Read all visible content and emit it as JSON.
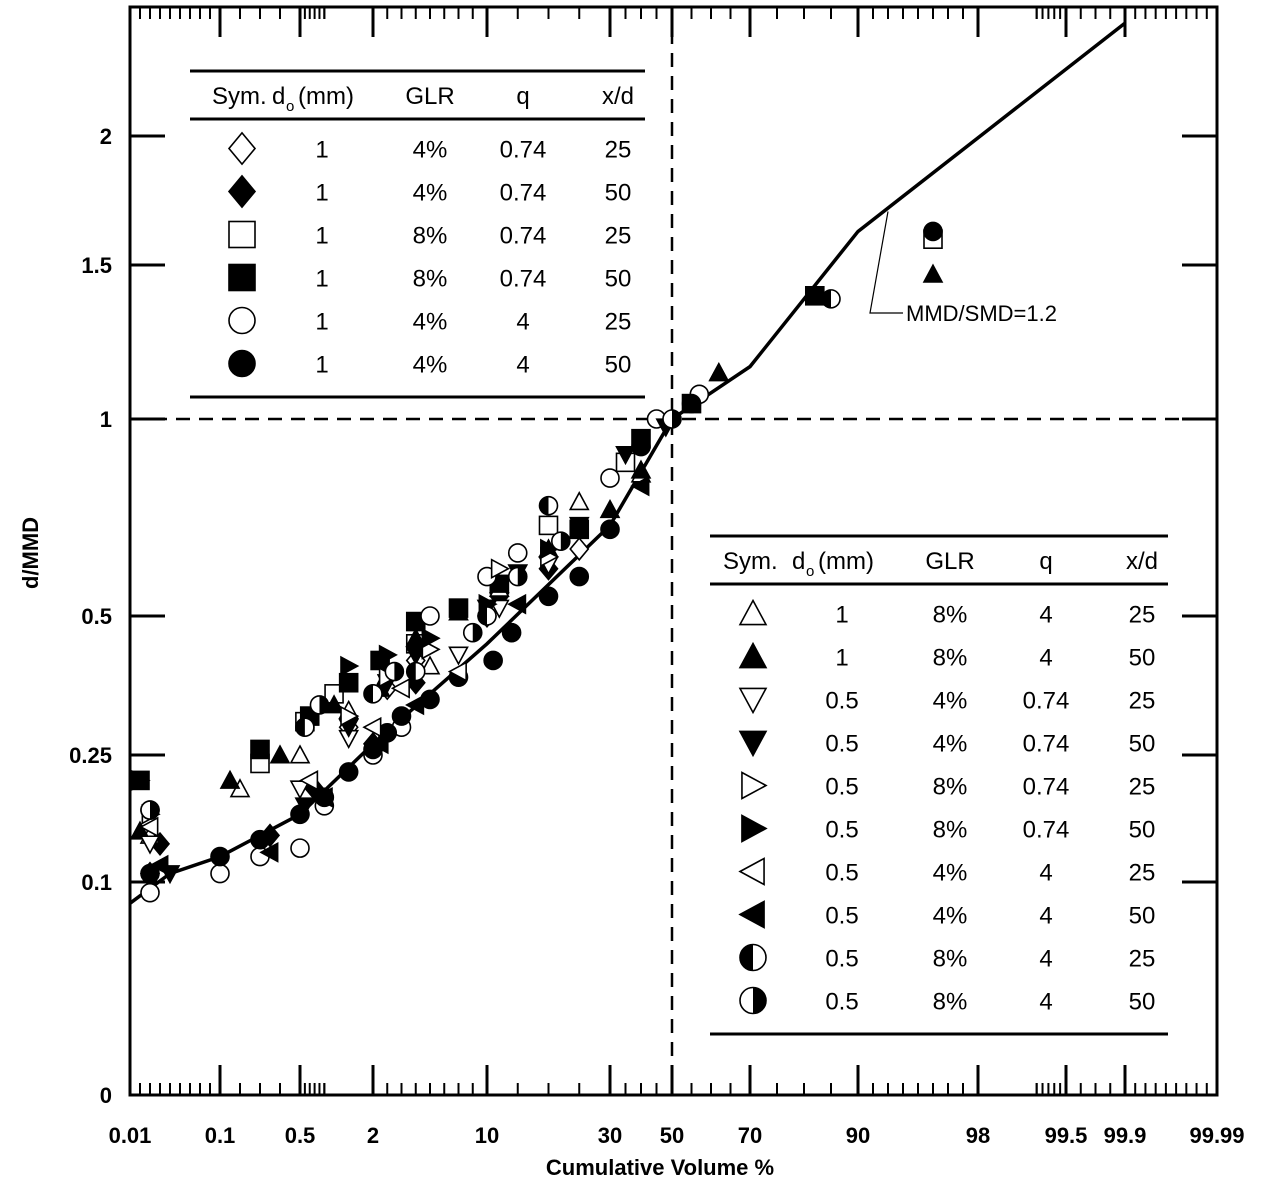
{
  "chart_data": {
    "type": "scatter",
    "xlabel": "Cumulative Volume %",
    "ylabel": "d/MMD",
    "x_scale": "probability",
    "y_scale": "nonlinear",
    "x_ticks": [
      {
        "value": 0.01,
        "label": "0.01"
      },
      {
        "value": 0.1,
        "label": "0.1"
      },
      {
        "value": 0.5,
        "label": "0.5"
      },
      {
        "value": 2,
        "label": "2"
      },
      {
        "value": 10,
        "label": "10"
      },
      {
        "value": 30,
        "label": "30"
      },
      {
        "value": 50,
        "label": "50"
      },
      {
        "value": 70,
        "label": "70"
      },
      {
        "value": 90,
        "label": "90"
      },
      {
        "value": 98,
        "label": "98"
      },
      {
        "value": 99.5,
        "label": "99.5"
      },
      {
        "value": 99.9,
        "label": "99.9"
      },
      {
        "value": 99.99,
        "label": "99.99"
      }
    ],
    "y_ticks": [
      {
        "value": 0,
        "label": "0"
      },
      {
        "value": 0.1,
        "label": "0.1"
      },
      {
        "value": 0.25,
        "label": "0.25"
      },
      {
        "value": 0.5,
        "label": "0.5"
      },
      {
        "value": 1,
        "label": "1"
      },
      {
        "value": 1.5,
        "label": "1.5"
      },
      {
        "value": 2,
        "label": "2"
      }
    ],
    "reference_lines": {
      "x": 50,
      "y": 1
    },
    "fit_line": {
      "label": "MMD/SMD=1.2",
      "x": [
        0.01,
        0.05,
        0.1,
        0.5,
        2,
        10,
        30,
        50,
        70,
        90,
        99.9
      ],
      "y": [
        0.09,
        0.11,
        0.13,
        0.18,
        0.27,
        0.45,
        0.73,
        1.0,
        1.17,
        1.63,
        2.35
      ]
    },
    "legend_top": {
      "headers": [
        "Sym.",
        "d",
        "o",
        "(mm)",
        "GLR",
        "q",
        "x/d"
      ],
      "rows": [
        {
          "symbol": "diamond-open",
          "d": "1",
          "glr": "4%",
          "q": "0.74",
          "xd": "25"
        },
        {
          "symbol": "diamond-filled",
          "d": "1",
          "glr": "4%",
          "q": "0.74",
          "xd": "50"
        },
        {
          "symbol": "square-open",
          "d": "1",
          "glr": "8%",
          "q": "0.74",
          "xd": "25"
        },
        {
          "symbol": "square-filled",
          "d": "1",
          "glr": "8%",
          "q": "0.74",
          "xd": "50"
        },
        {
          "symbol": "circle-open",
          "d": "1",
          "glr": "4%",
          "q": "4",
          "xd": "25"
        },
        {
          "symbol": "circle-filled",
          "d": "1",
          "glr": "4%",
          "q": "4",
          "xd": "50"
        }
      ]
    },
    "legend_bottom": {
      "headers": [
        "Sym.",
        "d",
        "o",
        "(mm)",
        "GLR",
        "q",
        "x/d"
      ],
      "rows": [
        {
          "symbol": "triangle-up-open",
          "d": "1",
          "glr": "8%",
          "q": "4",
          "xd": "25"
        },
        {
          "symbol": "triangle-up-filled",
          "d": "1",
          "glr": "8%",
          "q": "4",
          "xd": "50"
        },
        {
          "symbol": "triangle-down-open",
          "d": "0.5",
          "glr": "4%",
          "q": "0.74",
          "xd": "25"
        },
        {
          "symbol": "triangle-down-filled",
          "d": "0.5",
          "glr": "4%",
          "q": "0.74",
          "xd": "50"
        },
        {
          "symbol": "triangle-right-open",
          "d": "0.5",
          "glr": "8%",
          "q": "0.74",
          "xd": "25"
        },
        {
          "symbol": "triangle-right-filled",
          "d": "0.5",
          "glr": "8%",
          "q": "0.74",
          "xd": "50"
        },
        {
          "symbol": "triangle-left-open",
          "d": "0.5",
          "glr": "4%",
          "q": "4",
          "xd": "25"
        },
        {
          "symbol": "triangle-left-filled",
          "d": "0.5",
          "glr": "4%",
          "q": "4",
          "xd": "50"
        },
        {
          "symbol": "half-left",
          "d": "0.5",
          "glr": "8%",
          "q": "4",
          "xd": "25"
        },
        {
          "symbol": "half-right",
          "d": "0.5",
          "glr": "8%",
          "q": "4",
          "xd": "50"
        }
      ]
    },
    "series": [
      {
        "symbol": "diamond-open",
        "x": [
          0.03,
          1.5,
          3,
          5,
          10,
          25
        ],
        "y": [
          0.11,
          0.3,
          0.37,
          0.42,
          0.5,
          0.67
        ]
      },
      {
        "symbol": "diamond-filled",
        "x": [
          0.04,
          0.35,
          0.8,
          2,
          5,
          12,
          20
        ],
        "y": [
          0.145,
          0.155,
          0.21,
          0.27,
          0.38,
          0.55,
          0.62
        ]
      },
      {
        "symbol": "square-open",
        "x": [
          0.3,
          0.6,
          1.2,
          5,
          12,
          20,
          35,
          95
        ],
        "y": [
          0.24,
          0.31,
          0.36,
          0.45,
          0.58,
          0.73,
          0.89,
          1.6
        ]
      },
      {
        "symbol": "square-filled",
        "x": [
          0.02,
          0.3,
          0.7,
          1.5,
          2.5,
          5,
          8,
          12,
          25,
          40,
          55,
          82
        ],
        "y": [
          0.22,
          0.26,
          0.32,
          0.38,
          0.42,
          0.49,
          0.52,
          0.58,
          0.72,
          0.95,
          1.05,
          1.4
        ]
      },
      {
        "symbol": "circle-open",
        "x": [
          0.03,
          0.1,
          0.3,
          0.5,
          1,
          2,
          4,
          6,
          10,
          15,
          30,
          45,
          57
        ],
        "y": [
          0.095,
          0.11,
          0.13,
          0.14,
          0.19,
          0.25,
          0.3,
          0.5,
          0.6,
          0.66,
          0.85,
          1.0,
          1.08
        ]
      },
      {
        "symbol": "circle-filled",
        "x": [
          0.03,
          0.1,
          0.3,
          0.5,
          1,
          1.5,
          2,
          3,
          4,
          6,
          8,
          11,
          14,
          20,
          25,
          30,
          40,
          55,
          95
        ],
        "y": [
          0.11,
          0.13,
          0.15,
          0.18,
          0.2,
          0.23,
          0.26,
          0.29,
          0.32,
          0.35,
          0.39,
          0.42,
          0.47,
          0.55,
          0.6,
          0.72,
          0.93,
          1.05,
          1.63
        ]
      },
      {
        "symbol": "triangle-up-open",
        "x": [
          0.03,
          0.2,
          0.5,
          1.5,
          2.5,
          6,
          12,
          25,
          40,
          62
        ],
        "y": [
          0.155,
          0.21,
          0.25,
          0.33,
          0.37,
          0.41,
          0.57,
          0.79,
          0.86,
          1.15
        ]
      },
      {
        "symbol": "triangle-up-filled",
        "x": [
          0.02,
          0.15,
          0.4,
          1.2,
          2.5,
          5,
          8,
          12,
          20,
          30,
          40,
          62,
          95
        ],
        "y": [
          0.16,
          0.22,
          0.25,
          0.34,
          0.37,
          0.46,
          0.51,
          0.58,
          0.67,
          0.77,
          0.87,
          1.15,
          1.47
        ]
      },
      {
        "symbol": "triangle-down-open",
        "x": [
          0.03,
          0.5,
          1.5,
          3,
          8,
          12,
          20
        ],
        "y": [
          0.145,
          0.21,
          0.28,
          0.38,
          0.43,
          0.52,
          0.63
        ]
      },
      {
        "symbol": "triangle-down-filled",
        "x": [
          0.05,
          0.6,
          1.5,
          3,
          5,
          10,
          15,
          25,
          35,
          48
        ],
        "y": [
          0.11,
          0.19,
          0.3,
          0.38,
          0.43,
          0.52,
          0.61,
          0.73,
          0.91,
          0.98
        ]
      },
      {
        "symbol": "triangle-right-open",
        "x": [
          0.03,
          1.5,
          3,
          6,
          12,
          20
        ],
        "y": [
          0.18,
          0.32,
          0.39,
          0.44,
          0.62,
          0.65
        ]
      },
      {
        "symbol": "triangle-right-filled",
        "x": [
          0.02,
          1.5,
          3,
          6,
          10,
          20
        ],
        "y": [
          0.22,
          0.41,
          0.43,
          0.46,
          0.53,
          0.67
        ]
      },
      {
        "symbol": "triangle-left-open",
        "x": [
          0.03,
          0.7,
          2,
          4,
          8
        ],
        "y": [
          0.165,
          0.22,
          0.3,
          0.37,
          0.4
        ]
      },
      {
        "symbol": "triangle-left-filled",
        "x": [
          0.04,
          0.35,
          1,
          2.5,
          5,
          15,
          40
        ],
        "y": [
          0.12,
          0.135,
          0.2,
          0.27,
          0.34,
          0.53,
          0.83
        ]
      },
      {
        "symbol": "half-left",
        "x": [
          0.03,
          0.6,
          2,
          5,
          10,
          20,
          85
        ],
        "y": [
          0.185,
          0.3,
          0.36,
          0.4,
          0.5,
          0.78,
          1.39
        ]
      },
      {
        "symbol": "half-right",
        "x": [
          0.03,
          0.9,
          3.5,
          9,
          15,
          22,
          50
        ],
        "y": [
          0.185,
          0.34,
          0.4,
          0.47,
          0.6,
          0.69,
          1.0
        ]
      }
    ]
  }
}
